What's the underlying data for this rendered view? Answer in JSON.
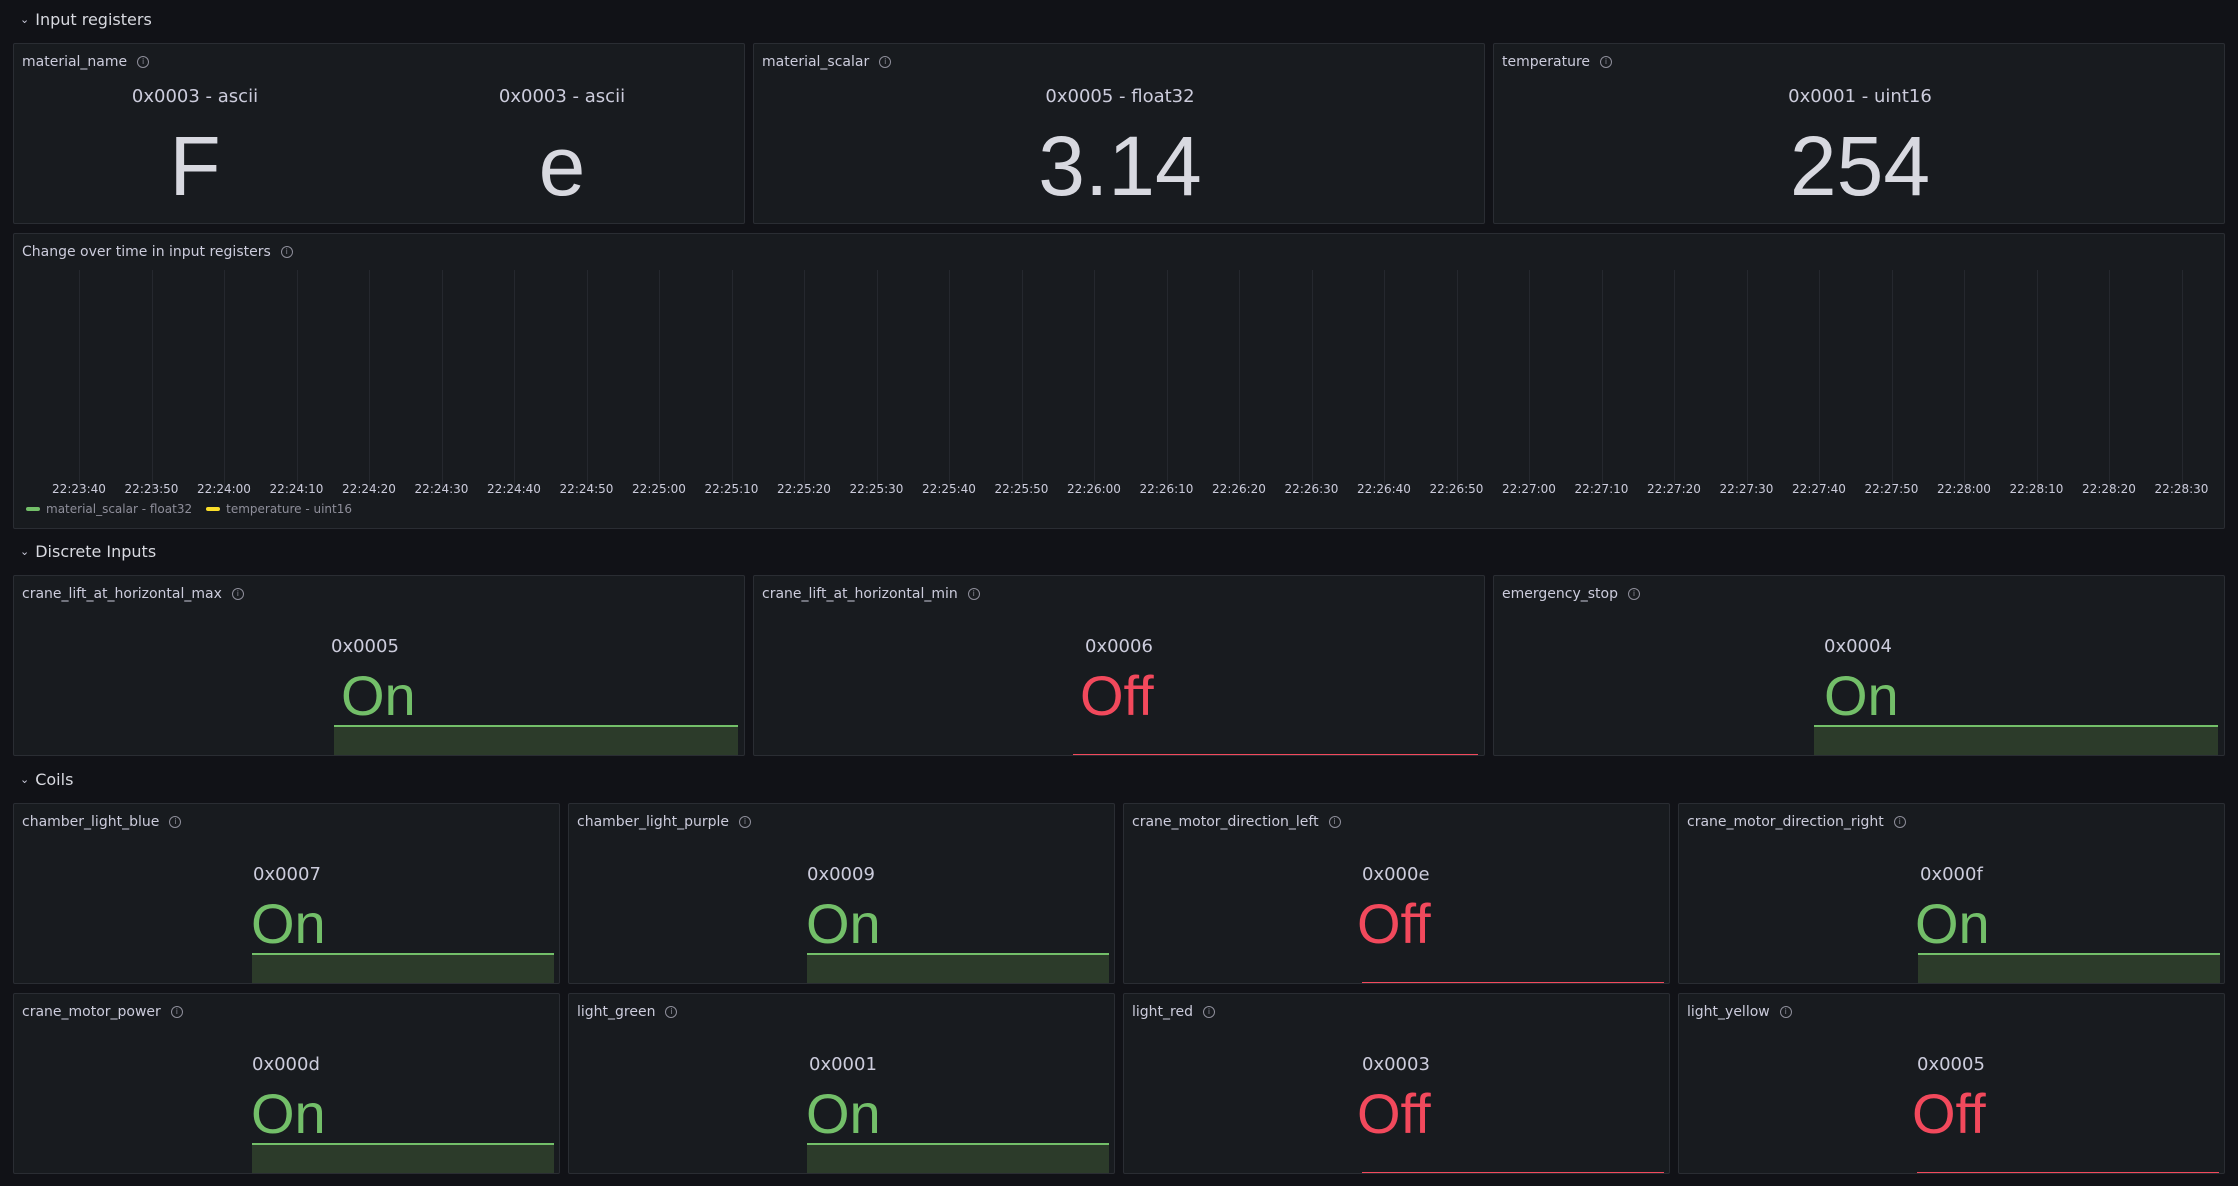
{
  "rows": {
    "input_registers": "Input registers",
    "discrete_inputs": "Discrete Inputs",
    "coils": "Coils"
  },
  "material_name": {
    "title": "material_name",
    "values": [
      {
        "label": "0x0003 - ascii",
        "value": "F"
      },
      {
        "label": "0x0003 - ascii",
        "value": "e"
      }
    ]
  },
  "material_scalar": {
    "title": "material_scalar",
    "label": "0x0005 - float32",
    "value": "3.14"
  },
  "temperature": {
    "title": "temperature",
    "label": "0x0001 - uint16",
    "value": "254"
  },
  "timeseries": {
    "title": "Change over time in input registers",
    "ticks": [
      "22:23:40",
      "22:23:50",
      "22:24:00",
      "22:24:10",
      "22:24:20",
      "22:24:30",
      "22:24:40",
      "22:24:50",
      "22:25:00",
      "22:25:10",
      "22:25:20",
      "22:25:30",
      "22:25:40",
      "22:25:50",
      "22:26:00",
      "22:26:10",
      "22:26:20",
      "22:26:30",
      "22:26:40",
      "22:26:50",
      "22:27:00",
      "22:27:10",
      "22:27:20",
      "22:27:30",
      "22:27:40",
      "22:27:50",
      "22:28:00",
      "22:28:10",
      "22:28:20",
      "22:28:30"
    ],
    "legend": [
      {
        "name": "material_scalar - float32",
        "color": "#73bf69"
      },
      {
        "name": "temperature - uint16",
        "color": "#fade2a"
      }
    ]
  },
  "discrete": [
    {
      "title": "crane_lift_at_horizontal_max",
      "label": "0x0005",
      "state": "On"
    },
    {
      "title": "crane_lift_at_horizontal_min",
      "label": "0x0006",
      "state": "Off"
    },
    {
      "title": "emergency_stop",
      "label": "0x0004",
      "state": "On"
    }
  ],
  "coils": [
    {
      "title": "chamber_light_blue",
      "label": "0x0007",
      "state": "On"
    },
    {
      "title": "chamber_light_purple",
      "label": "0x0009",
      "state": "On"
    },
    {
      "title": "crane_motor_direction_left",
      "label": "0x000e",
      "state": "Off"
    },
    {
      "title": "crane_motor_direction_right",
      "label": "0x000f",
      "state": "On"
    },
    {
      "title": "crane_motor_power",
      "label": "0x000d",
      "state": "On"
    },
    {
      "title": "light_green",
      "label": "0x0001",
      "state": "On"
    },
    {
      "title": "light_red",
      "label": "0x0003",
      "state": "Off"
    },
    {
      "title": "light_yellow",
      "label": "0x0005",
      "state": "Off"
    }
  ],
  "colors": {
    "on": "#73bf69",
    "off": "#f2495c",
    "background": "#111217",
    "panel": "#181b1f"
  }
}
